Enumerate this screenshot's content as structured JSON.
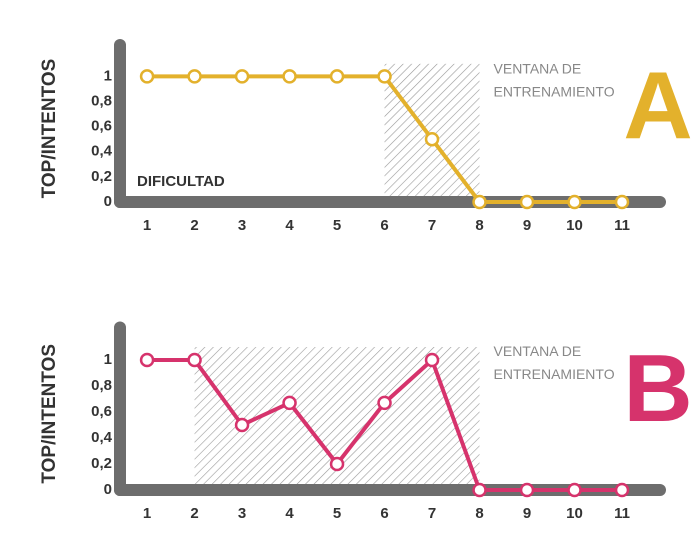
{
  "chart_data": [
    {
      "type": "line",
      "panel": "A",
      "ylabel": "TOP/INTENTOS",
      "xlabel": "DIFICULTAD",
      "annotation": [
        "VENTANA DE",
        "ENTRENAMIENTO"
      ],
      "window": [
        6,
        8
      ],
      "x": [
        1,
        2,
        3,
        4,
        5,
        6,
        7,
        8,
        9,
        10,
        11
      ],
      "values": [
        1,
        1,
        1,
        1,
        1,
        1,
        0.5,
        0,
        0,
        0,
        0
      ],
      "color": "#e3b12c",
      "xlim": [
        0.43,
        11.8
      ],
      "ylim": [
        0,
        1.25
      ],
      "xticks": [
        1,
        2,
        3,
        4,
        5,
        6,
        7,
        8,
        9,
        10,
        11
      ],
      "yticks": [
        0,
        {
          "value": 0.2,
          "label": "0,2"
        },
        {
          "value": 0.4,
          "label": "0,4"
        },
        {
          "value": 0.6,
          "label": "0,6"
        },
        {
          "value": 0.8,
          "label": "0,8"
        },
        1
      ]
    },
    {
      "type": "line",
      "panel": "B",
      "ylabel": "TOP/INTENTOS",
      "annotation": [
        "VENTANA DE",
        "ENTRENAMIENTO"
      ],
      "window": [
        2,
        8
      ],
      "x": [
        1,
        2,
        3,
        4,
        5,
        6,
        7,
        8,
        9,
        10,
        11
      ],
      "values": [
        1,
        1,
        0.5,
        0.67,
        0.2,
        0.67,
        1,
        0,
        0,
        0,
        0
      ],
      "color": "#d6336c",
      "xlim": [
        0.43,
        11.8
      ],
      "ylim": [
        0,
        1.25
      ],
      "xticks": [
        1,
        2,
        3,
        4,
        5,
        6,
        7,
        8,
        9,
        10,
        11
      ],
      "yticks": [
        0,
        {
          "value": 0.2,
          "label": "0,2"
        },
        {
          "value": 0.4,
          "label": "0,4"
        },
        {
          "value": 0.6,
          "label": "0,6"
        },
        {
          "value": 0.8,
          "label": "0,8"
        },
        1
      ]
    }
  ]
}
